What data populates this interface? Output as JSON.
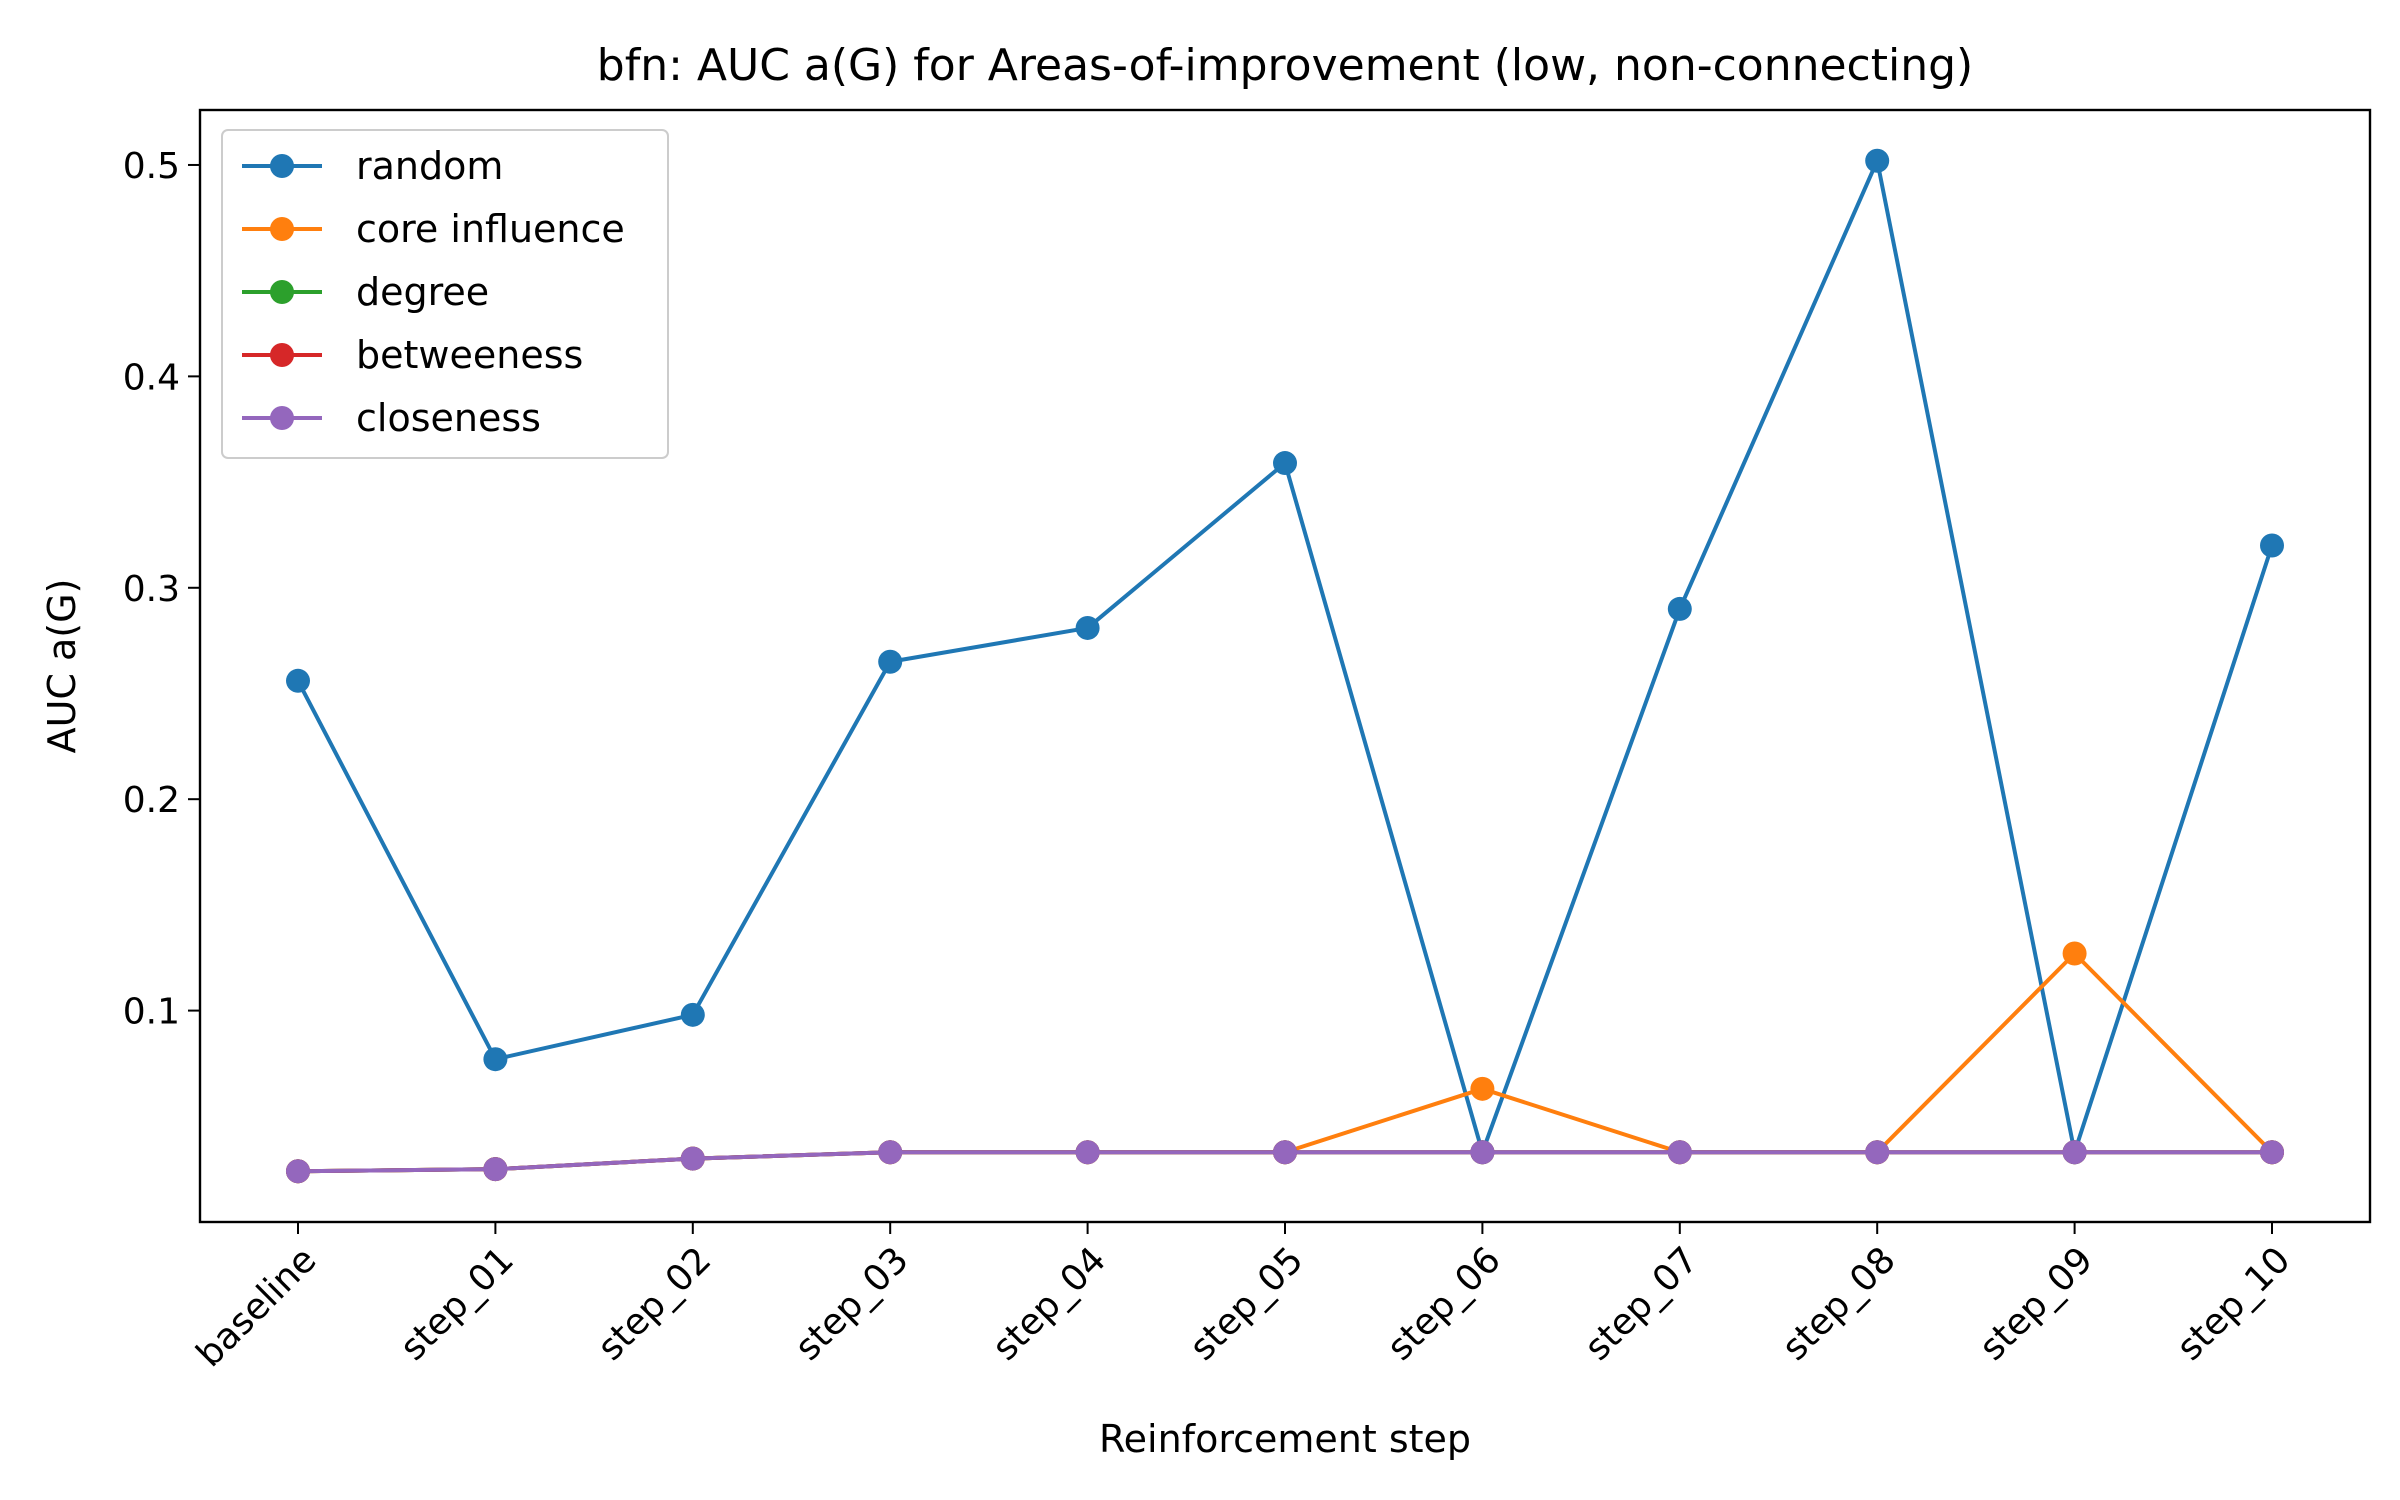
{
  "chart_data": {
    "type": "line",
    "title": "bfn: AUC a(G) for Areas-of-improvement (low, non-connecting)",
    "xlabel": "Reinforcement step",
    "ylabel": "AUC a(G)",
    "categories": [
      "baseline",
      "step_01",
      "step_02",
      "step_03",
      "step_04",
      "step_05",
      "step_06",
      "step_07",
      "step_08",
      "step_09",
      "step_10"
    ],
    "ylim": [
      0.0,
      0.526
    ],
    "yticks": [
      0.1,
      0.2,
      0.3,
      0.4,
      0.5
    ],
    "ytick_labels": [
      "0.1",
      "0.2",
      "0.3",
      "0.4",
      "0.5"
    ],
    "grid": false,
    "legend_position": "upper-left",
    "series": [
      {
        "name": "random",
        "color": "#1f77b4",
        "values": [
          0.256,
          0.077,
          0.098,
          0.265,
          0.281,
          0.359,
          0.033,
          0.29,
          0.502,
          0.033,
          0.32
        ]
      },
      {
        "name": "core influence",
        "color": "#ff7f0e",
        "values": [
          0.024,
          0.025,
          0.03,
          0.033,
          0.033,
          0.033,
          0.063,
          0.033,
          0.033,
          0.127,
          0.033
        ]
      },
      {
        "name": "degree",
        "color": "#2ca02c",
        "values": [
          0.024,
          0.025,
          0.03,
          0.033,
          0.033,
          0.033,
          0.033,
          0.033,
          0.033,
          0.033,
          0.033
        ]
      },
      {
        "name": "betweeness",
        "color": "#d62728",
        "values": [
          0.024,
          0.025,
          0.03,
          0.033,
          0.033,
          0.033,
          0.033,
          0.033,
          0.033,
          0.033,
          0.033
        ]
      },
      {
        "name": "closeness",
        "color": "#9467bd",
        "values": [
          0.024,
          0.025,
          0.03,
          0.033,
          0.033,
          0.033,
          0.033,
          0.033,
          0.033,
          0.033,
          0.033
        ]
      }
    ]
  }
}
